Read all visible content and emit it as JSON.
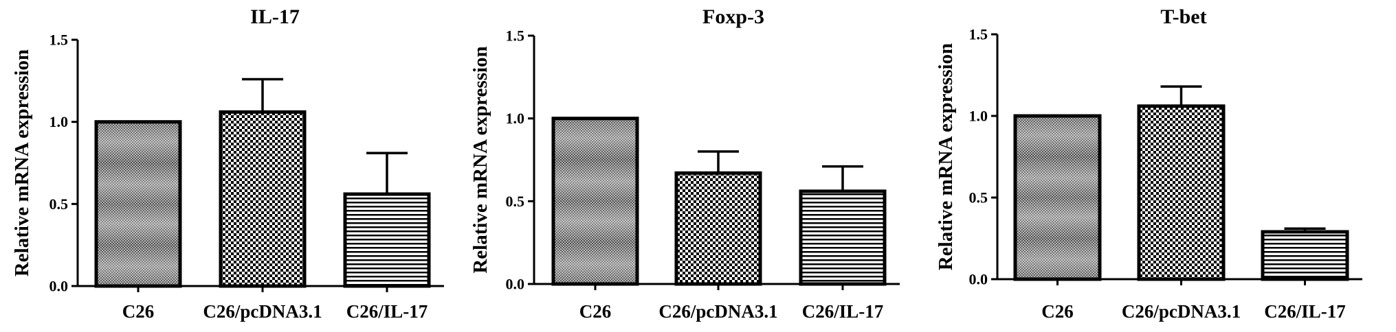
{
  "colors": {
    "ink": "#000000",
    "background": "#ffffff"
  },
  "chart_data": [
    {
      "type": "bar",
      "title": "IL-17",
      "ylabel": "Relative mRNA expression",
      "xlabel": "",
      "categories": [
        "C26",
        "C26/pcDNA3.1",
        "C26/IL-17"
      ],
      "values": [
        1.0,
        1.06,
        0.56
      ],
      "errors": [
        0.0,
        0.2,
        0.25
      ],
      "patterns": [
        "gradient-checker",
        "checker",
        "horizontal-lines"
      ],
      "ylim": [
        0,
        1.5
      ],
      "yticks": [
        "0.0",
        "0.5",
        "1.0",
        "1.5"
      ],
      "grid": false,
      "legend": "none"
    },
    {
      "type": "bar",
      "title": "Foxp-3",
      "ylabel": "Relative mRNA expression",
      "xlabel": "",
      "categories": [
        "C26",
        "C26/pcDNA3.1",
        "C26/IL-17"
      ],
      "values": [
        1.0,
        0.67,
        0.56
      ],
      "errors": [
        0.0,
        0.13,
        0.15
      ],
      "patterns": [
        "gradient-checker",
        "checker",
        "horizontal-lines"
      ],
      "ylim": [
        0,
        1.5
      ],
      "yticks": [
        "0.0",
        "0.5",
        "1.0",
        "1.5"
      ],
      "grid": false,
      "legend": "none"
    },
    {
      "type": "bar",
      "title": "T-bet",
      "ylabel": "Relative mRNA expression",
      "xlabel": "",
      "categories": [
        "C26",
        "C26/pcDNA3.1",
        "C26/IL-17"
      ],
      "values": [
        1.0,
        1.06,
        0.29
      ],
      "errors": [
        0.0,
        0.12,
        0.02
      ],
      "patterns": [
        "gradient-checker",
        "checker",
        "horizontal-lines"
      ],
      "ylim": [
        0,
        1.5
      ],
      "yticks": [
        "0.0",
        "0.5",
        "1.0",
        "1.5"
      ],
      "grid": false,
      "legend": "none"
    }
  ]
}
